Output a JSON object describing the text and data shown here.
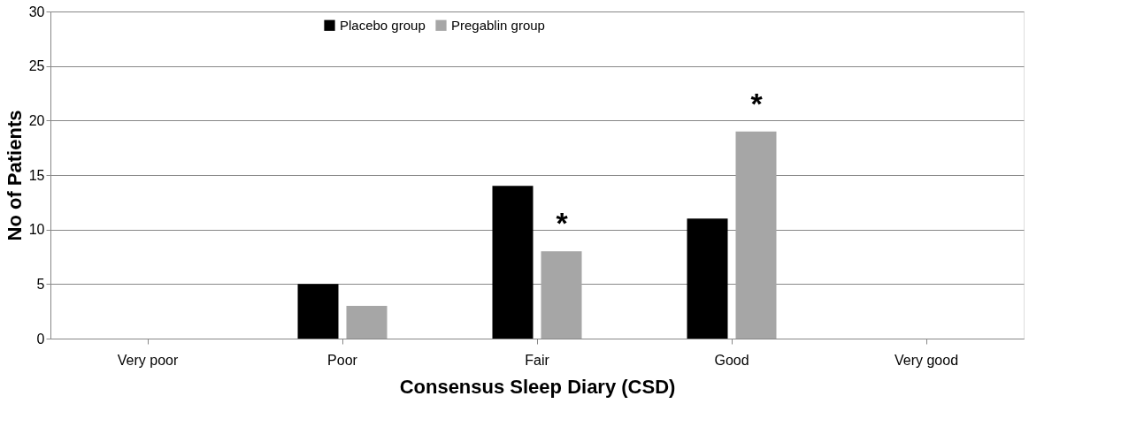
{
  "chart_data": {
    "type": "bar",
    "xlabel": "Consensus Sleep Diary (CSD)",
    "ylabel": "No of Patients",
    "categories": [
      "Very poor",
      "Poor",
      "Fair",
      "Good",
      "Very good"
    ],
    "series": [
      {
        "name": "Placebo group",
        "color": "#000000",
        "values": [
          0,
          5,
          14,
          11,
          0
        ]
      },
      {
        "name": "Pregablin group",
        "color": "#a6a6a6",
        "values": [
          0,
          3,
          8,
          19,
          0
        ]
      }
    ],
    "ylim": [
      0,
      30
    ],
    "yticks": [
      0,
      5,
      10,
      15,
      20,
      25,
      30
    ],
    "grid": "y",
    "legend": "top",
    "annotations": [
      {
        "text": "*",
        "x": "Fair",
        "y": 8
      },
      {
        "text": "*",
        "x": "Good",
        "y": 19
      }
    ]
  }
}
